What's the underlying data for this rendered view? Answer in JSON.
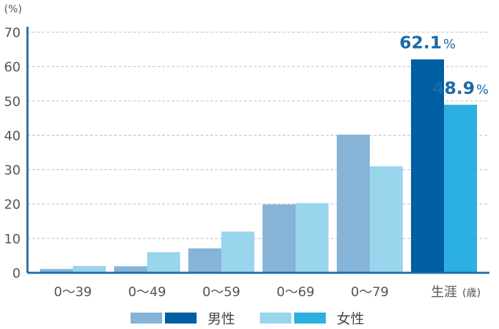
{
  "chart_data": {
    "type": "bar",
    "ylabel": "(%)",
    "xunit": "(歳)",
    "categories": [
      "0〜39",
      "0〜49",
      "0〜59",
      "0〜69",
      "0〜79",
      "生涯"
    ],
    "ylim": [
      0,
      70
    ],
    "yticks": [
      0,
      10,
      20,
      30,
      40,
      50,
      60,
      70
    ],
    "grid": true,
    "series": [
      {
        "name": "男性",
        "values": [
          1.1,
          1.9,
          7.1,
          19.9,
          40.2,
          62.1
        ],
        "colors": {
          "normal": "#86b3d8",
          "highlight": "#005ea2"
        }
      },
      {
        "name": "女性",
        "values": [
          2.0,
          6.0,
          12.0,
          20.3,
          31.0,
          48.9
        ],
        "colors": {
          "normal": "#9ad5ee",
          "highlight": "#2bb0e1"
        }
      }
    ],
    "highlight_category": "生涯",
    "data_labels": [
      {
        "series": "男性",
        "category": "生涯",
        "text": "62.1%"
      },
      {
        "series": "女性",
        "category": "生涯",
        "text": "48.9%"
      }
    ],
    "axis_color": "#1f6aa5",
    "grid_color": "#bbbbbb",
    "legend_position": "bottom-center"
  }
}
